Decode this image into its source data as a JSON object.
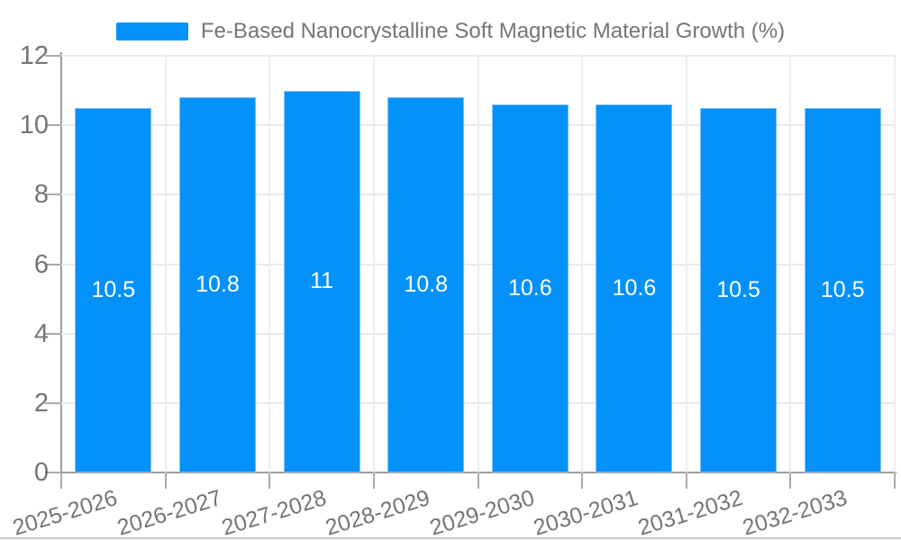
{
  "legend": {
    "label": "Fe-Based Nanocrystalline Soft Magnetic Material Growth (%)"
  },
  "colors": {
    "bar_fill": "#0591FA",
    "bar_border": "#7fc0fa",
    "bar_label": "#ffffff",
    "axis_line": "#9d9d9d",
    "grid_line": "#e9e9ee",
    "text_gray": "#757575",
    "background": "#ffffff"
  },
  "chart_data": {
    "type": "bar",
    "title": "Fe-Based Nanocrystalline Soft Magnetic Material Growth (%)",
    "categories": [
      "2025-2026",
      "2026-2027",
      "2027-2028",
      "2028-2029",
      "2029-2030",
      "2030-2031",
      "2031-2032",
      "2032-2033"
    ],
    "values": [
      10.5,
      10.8,
      11,
      10.8,
      10.6,
      10.6,
      10.5,
      10.5
    ],
    "bar_value_labels": [
      "10.5",
      "10.8",
      "11",
      "10.8",
      "10.6",
      "10.6",
      "10.5",
      "10.5"
    ],
    "xlabel": "",
    "ylabel": "",
    "ylim": [
      0,
      12
    ],
    "yticks": [
      0,
      2,
      4,
      6,
      8,
      10,
      12
    ],
    "grid": true,
    "legend_position": "top",
    "x_label_rotation_deg": -17
  }
}
